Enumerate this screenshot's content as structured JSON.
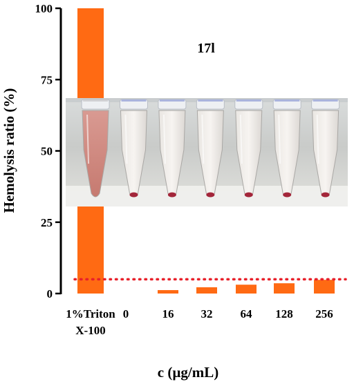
{
  "chart_data": {
    "type": "bar",
    "panel_label": "17l",
    "ylabel": "Hemolysis ratio (%)",
    "xlabel": "c (µg/mL)",
    "ylim": [
      0,
      100
    ],
    "yticks": [
      "0",
      "25",
      "50",
      "75",
      "100"
    ],
    "categories": [
      [
        "1%Triton",
        "X-100"
      ],
      [
        "0"
      ],
      [
        "16"
      ],
      [
        "32"
      ],
      [
        "64"
      ],
      [
        "128"
      ],
      [
        "256"
      ]
    ],
    "values": [
      100,
      0,
      1.2,
      2.2,
      3.1,
      3.6,
      4.8
    ],
    "threshold": 5,
    "colors": {
      "bar": "#FF6A13",
      "threshold_line": "#E8202A",
      "axis": "#000000"
    },
    "inset_photo": {
      "subject": "hemolysis-tubes",
      "tube_count": 7
    }
  }
}
